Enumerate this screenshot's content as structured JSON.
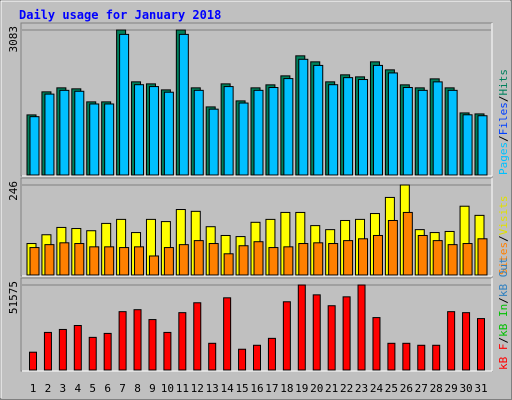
{
  "chart_data": [
    {
      "type": "bar",
      "title": "Daily usage for January 2018",
      "categories": [
        "1",
        "2",
        "3",
        "4",
        "5",
        "6",
        "7",
        "8",
        "9",
        "10",
        "11",
        "12",
        "13",
        "14",
        "15",
        "16",
        "17",
        "18",
        "19",
        "20",
        "21",
        "22",
        "23",
        "24",
        "25",
        "26",
        "27",
        "28",
        "29",
        "30",
        "31"
      ],
      "weekend_indices": [
        5,
        6,
        12,
        13,
        19,
        20,
        26,
        27
      ],
      "weekend_color": "#00805c",
      "category_color": "#000000",
      "ylim": [
        0,
        3083
      ],
      "yticks": [
        3083
      ],
      "legend": [
        {
          "name": "Pages",
          "color": "#00c0ff"
        },
        {
          "name": "Files",
          "color": "#0040ff"
        },
        {
          "name": "Hits",
          "color": "#00805c"
        }
      ],
      "series": [
        {
          "name": "Hits",
          "color": "#00805c",
          "values": [
            1278,
            1768,
            1853,
            1832,
            1555,
            1555,
            3083,
            1981,
            1938,
            1810,
            3083,
            1853,
            1448,
            1938,
            1576,
            1853,
            1917,
            2108,
            2534,
            2406,
            1981,
            2130,
            2087,
            2406,
            2236,
            1917,
            1853,
            2044,
            1853,
            1320,
            1299
          ]
        },
        {
          "name": "Pages",
          "color": "#00c0ff",
          "values": [
            1240,
            1720,
            1800,
            1780,
            1510,
            1510,
            2990,
            1920,
            1880,
            1760,
            2990,
            1800,
            1400,
            1880,
            1530,
            1800,
            1860,
            2050,
            2460,
            2330,
            1920,
            2070,
            2030,
            2330,
            2170,
            1860,
            1800,
            1980,
            1800,
            1280,
            1260
          ]
        }
      ]
    },
    {
      "type": "bar",
      "ylim": [
        0,
        246
      ],
      "yticks": [
        246
      ],
      "legend": [
        {
          "name": "Sites",
          "color": "#ff8000"
        },
        {
          "name": "Visits",
          "color": "#e0e000"
        }
      ],
      "series": [
        {
          "name": "Visits",
          "color": "#ffff00",
          "values": [
            86,
            110,
            130,
            127,
            121,
            141,
            152,
            116,
            152,
            146,
            179,
            174,
            132,
            108,
            105,
            144,
            152,
            171,
            171,
            135,
            124,
            149,
            152,
            168,
            212,
            246,
            124,
            116,
            119,
            188,
            163
          ]
        },
        {
          "name": "Sites",
          "color": "#ff8000",
          "values": [
            75,
            83,
            88,
            86,
            77,
            77,
            75,
            77,
            52,
            75,
            83,
            94,
            86,
            58,
            80,
            91,
            75,
            77,
            86,
            88,
            86,
            94,
            99,
            108,
            149,
            171,
            108,
            94,
            83,
            86,
            99
          ]
        }
      ]
    },
    {
      "type": "bar",
      "ylim": [
        0,
        51575
      ],
      "yticks": [
        51575
      ],
      "legend": [
        {
          "name": "kB F",
          "color": "#ff0000"
        },
        {
          "name": "kB In",
          "color": "#00c000"
        },
        {
          "name": "kB Out",
          "color": "#3080c0"
        }
      ],
      "series": [
        {
          "name": "kB F",
          "color": "#ff0000",
          "values": [
            10800,
            22800,
            24600,
            27000,
            19800,
            22200,
            35400,
            36600,
            30600,
            22800,
            34800,
            40800,
            16200,
            43800,
            12600,
            15000,
            19200,
            41400,
            51575,
            45600,
            39000,
            44400,
            51575,
            31800,
            16200,
            16200,
            15000,
            15000,
            35400,
            34800,
            31200
          ]
        }
      ]
    }
  ]
}
